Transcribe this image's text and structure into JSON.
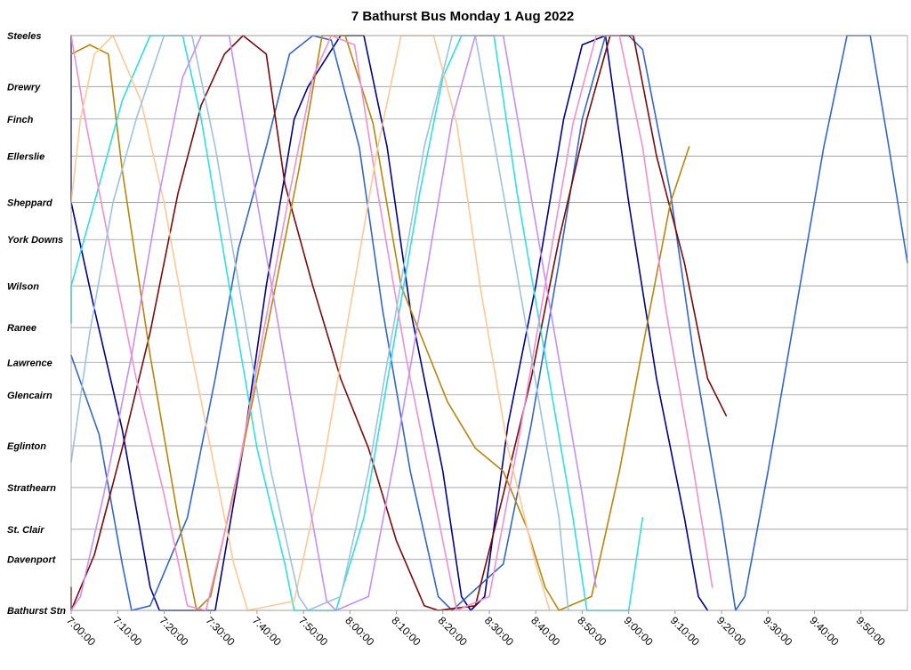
{
  "chart_data": {
    "type": "line",
    "title": "7 Bathurst Bus Monday 1 Aug 2022",
    "xlabel": "",
    "ylabel": "",
    "x_axis": {
      "unit": "time of day",
      "range": [
        "7:00:00",
        "10:00:00"
      ],
      "tick_labels": [
        "7:00:00",
        "7:10:00",
        "7:20:00",
        "7:30:00",
        "7:40:00",
        "7:50:00",
        "8:00:00",
        "8:10:00",
        "8:20:00",
        "8:30:00",
        "8:40:00",
        "8:50:00",
        "9:00:00",
        "9:10:00",
        "9:20:00",
        "9:30:00",
        "9:40:00",
        "9:50:00"
      ]
    },
    "y_axis": {
      "categories_top_to_bottom": [
        "Steeles",
        "Drewry",
        "Finch",
        "Ellerslie",
        "Sheppard",
        "York Downs",
        "Wilson",
        "Ranee",
        "Lawrence",
        "Glencairn",
        "Eglinton",
        "Strathearn",
        "St. Clair",
        "Davenport",
        "Bathurst Stn"
      ],
      "stops": [
        {
          "name": "Steeles",
          "km": 12.4
        },
        {
          "name": "Drewry",
          "km": 11.3
        },
        {
          "name": "Finch",
          "km": 10.6
        },
        {
          "name": "Ellerslie",
          "km": 9.8
        },
        {
          "name": "Sheppard",
          "km": 8.8
        },
        {
          "name": "York Downs",
          "km": 8.0
        },
        {
          "name": "Wilson",
          "km": 7.0
        },
        {
          "name": "Ranee",
          "km": 6.1
        },
        {
          "name": "Lawrence",
          "km": 5.35
        },
        {
          "name": "Glencairn",
          "km": 4.65
        },
        {
          "name": "Eglinton",
          "km": 3.55
        },
        {
          "name": "Strathearn",
          "km": 2.65
        },
        {
          "name": "St. Clair",
          "km": 1.75
        },
        {
          "name": "Davenport",
          "km": 1.1
        },
        {
          "name": "Bathurst Stn",
          "km": 0.0
        }
      ]
    },
    "grid": true,
    "legend": "none",
    "series": [
      {
        "color": "#00008B",
        "points": [
          [
            "6:59:00",
            12.4
          ],
          [
            "7:00:00",
            8.8
          ],
          [
            "7:05:00",
            6.5
          ],
          [
            "7:11:00",
            3.9
          ],
          [
            "7:17:00",
            0.5
          ],
          [
            "7:19:00",
            0.0
          ],
          [
            "7:31:00",
            0.0
          ],
          [
            "7:37:00",
            3.5
          ],
          [
            "7:42:00",
            7.0
          ],
          [
            "7:48:00",
            10.6
          ],
          [
            "7:51:00",
            11.3
          ],
          [
            "7:58:00",
            12.4
          ],
          [
            "8:03:00",
            12.4
          ],
          [
            "8:08:00",
            10.0
          ],
          [
            "8:13:00",
            6.5
          ],
          [
            "8:20:00",
            3.0
          ],
          [
            "8:24:00",
            0.3
          ],
          [
            "8:26:00",
            0.0
          ],
          [
            "8:29:00",
            0.3
          ],
          [
            "8:34:00",
            4.0
          ],
          [
            "8:40:00",
            7.0
          ],
          [
            "8:46:00",
            10.6
          ],
          [
            "8:50:00",
            12.2
          ],
          [
            "8:55:00",
            12.4
          ],
          [
            "9:00:00",
            8.8
          ],
          [
            "9:06:00",
            5.0
          ],
          [
            "9:12:00",
            2.0
          ],
          [
            "9:15:00",
            0.3
          ],
          [
            "9:17:00",
            0.0
          ]
        ]
      },
      {
        "color": "#3366CC",
        "points": [
          [
            "6:59:00",
            5.5
          ],
          [
            "7:06:00",
            3.8
          ],
          [
            "7:11:00",
            1.0
          ],
          [
            "7:13:00",
            0.0
          ],
          [
            "7:17:00",
            0.1
          ],
          [
            "7:25:00",
            2.0
          ],
          [
            "7:31:00",
            5.0
          ],
          [
            "7:36:00",
            7.8
          ],
          [
            "7:42:00",
            10.0
          ],
          [
            "7:47:00",
            12.0
          ],
          [
            "7:52:00",
            12.4
          ],
          [
            "7:56:00",
            12.3
          ],
          [
            "8:02:00",
            10.0
          ],
          [
            "8:07:00",
            6.5
          ],
          [
            "8:13:00",
            3.0
          ],
          [
            "8:19:00",
            0.3
          ],
          [
            "8:22:00",
            0.0
          ],
          [
            "8:33:00",
            1.0
          ],
          [
            "8:39:00",
            4.0
          ],
          [
            "8:45:00",
            7.5
          ],
          [
            "8:50:00",
            10.6
          ],
          [
            "8:55:00",
            12.4
          ],
          [
            "9:00:00",
            12.4
          ],
          [
            "9:03:00",
            12.1
          ],
          [
            "9:09:00",
            9.0
          ],
          [
            "9:14:00",
            5.5
          ],
          [
            "9:20:00",
            2.0
          ],
          [
            "9:23:00",
            0.0
          ],
          [
            "9:25:00",
            0.3
          ],
          [
            "9:30:00",
            3.0
          ],
          [
            "9:36:00",
            6.5
          ],
          [
            "9:42:00",
            10.0
          ],
          [
            "9:47:00",
            12.4
          ],
          [
            "9:52:00",
            12.4
          ],
          [
            "9:56:00",
            10.0
          ],
          [
            "10:00:00",
            7.5
          ]
        ]
      },
      {
        "color": "#7A0A0A",
        "points": [
          [
            "6:59:00",
            0.5
          ],
          [
            "7:00:00",
            0.0
          ],
          [
            "7:05:00",
            1.2
          ],
          [
            "7:11:00",
            3.5
          ],
          [
            "7:17:00",
            6.0
          ],
          [
            "7:23:00",
            9.0
          ],
          [
            "7:28:00",
            10.9
          ],
          [
            "7:33:00",
            12.0
          ],
          [
            "7:37:00",
            12.4
          ],
          [
            "7:42:00",
            12.0
          ],
          [
            "7:46:00",
            9.2
          ],
          [
            "7:52:00",
            7.0
          ],
          [
            "7:58:00",
            5.0
          ],
          [
            "8:04:00",
            3.5
          ],
          [
            "8:10:00",
            1.5
          ],
          [
            "8:16:00",
            0.1
          ],
          [
            "8:19:00",
            0.0
          ],
          [
            "8:27:00",
            0.1
          ],
          [
            "8:33:00",
            2.5
          ],
          [
            "8:39:00",
            5.0
          ],
          [
            "8:45:00",
            8.0
          ],
          [
            "8:51:00",
            10.6
          ],
          [
            "8:56:00",
            12.4
          ],
          [
            "9:01:00",
            12.4
          ],
          [
            "9:06:00",
            9.8
          ],
          [
            "9:12:00",
            7.5
          ],
          [
            "9:17:00",
            5.0
          ],
          [
            "9:21:00",
            4.2
          ]
        ]
      },
      {
        "color": "#B8860B",
        "points": [
          [
            "6:59:00",
            12.0
          ],
          [
            "7:04:00",
            12.2
          ],
          [
            "7:08:00",
            12.0
          ],
          [
            "7:11:00",
            9.5
          ],
          [
            "7:17:00",
            5.5
          ],
          [
            "7:23:00",
            2.0
          ],
          [
            "7:27:00",
            0.0
          ],
          [
            "7:30:00",
            0.3
          ],
          [
            "7:37:00",
            3.5
          ],
          [
            "7:43:00",
            6.5
          ],
          [
            "7:49:00",
            9.5
          ],
          [
            "7:54:00",
            12.4
          ],
          [
            "7:59:00",
            12.4
          ],
          [
            "8:05:00",
            10.5
          ],
          [
            "8:11:00",
            7.0
          ],
          [
            "8:17:00",
            5.5
          ],
          [
            "8:21:00",
            4.5
          ],
          [
            "8:27:00",
            3.5
          ],
          [
            "8:33:00",
            3.0
          ],
          [
            "8:38:00",
            1.8
          ],
          [
            "8:42:00",
            0.5
          ],
          [
            "8:45:00",
            0.0
          ],
          [
            "8:52:00",
            0.3
          ],
          [
            "8:58:00",
            3.0
          ],
          [
            "9:04:00",
            6.2
          ],
          [
            "9:09:00",
            8.8
          ],
          [
            "9:13:00",
            10.0
          ]
        ]
      },
      {
        "color": "#2EE0E0",
        "points": [
          [
            "6:59:00",
            6.2
          ],
          [
            "7:00:00",
            7.0
          ],
          [
            "7:05:00",
            8.8
          ],
          [
            "7:11:00",
            11.0
          ],
          [
            "7:17:00",
            12.4
          ],
          [
            "7:24:00",
            12.4
          ],
          [
            "7:28:00",
            10.6
          ],
          [
            "7:34:00",
            7.0
          ],
          [
            "7:40:00",
            3.5
          ],
          [
            "7:46:00",
            1.0
          ],
          [
            "7:48:00",
            0.0
          ],
          [
            "7:57:00",
            0.0
          ],
          [
            "8:03:00",
            2.0
          ],
          [
            "8:09:00",
            5.5
          ],
          [
            "8:15:00",
            9.0
          ],
          [
            "8:20:00",
            11.5
          ],
          [
            "8:24:00",
            12.4
          ],
          [
            "8:31:00",
            12.4
          ],
          [
            "8:36:00",
            9.0
          ],
          [
            "8:42:00",
            5.5
          ],
          [
            "8:48:00",
            2.0
          ],
          [
            "8:51:00",
            0.0
          ],
          [
            "9:00:00",
            0.0
          ],
          [
            "9:03:00",
            2.0
          ]
        ]
      },
      {
        "color": "#F090D0",
        "points": [
          [
            "6:59:00",
            12.4
          ],
          [
            "7:03:00",
            10.6
          ],
          [
            "7:09:00",
            7.5
          ],
          [
            "7:14:00",
            5.0
          ],
          [
            "7:20:00",
            2.5
          ],
          [
            "7:25:00",
            0.1
          ],
          [
            "7:29:00",
            0.0
          ],
          [
            "7:35:00",
            2.5
          ],
          [
            "7:41:00",
            5.8
          ],
          [
            "7:47:00",
            9.0
          ],
          [
            "7:52:00",
            11.5
          ],
          [
            "7:56:00",
            12.4
          ],
          [
            "8:01:00",
            12.2
          ],
          [
            "8:06:00",
            9.0
          ],
          [
            "8:12:00",
            5.5
          ],
          [
            "8:18:00",
            2.5
          ],
          [
            "8:23:00",
            0.0
          ],
          [
            "8:30:00",
            0.3
          ],
          [
            "8:36:00",
            3.5
          ],
          [
            "8:42:00",
            7.0
          ],
          [
            "8:48:00",
            10.5
          ],
          [
            "8:53:00",
            12.4
          ],
          [
            "8:58:00",
            12.4
          ],
          [
            "9:03:00",
            10.0
          ],
          [
            "9:08:00",
            6.5
          ],
          [
            "9:14:00",
            3.0
          ],
          [
            "9:18:00",
            0.5
          ]
        ]
      },
      {
        "color": "#FFC896",
        "points": [
          [
            "6:59:00",
            8.8
          ],
          [
            "7:02:00",
            10.6
          ],
          [
            "7:05:00",
            12.0
          ],
          [
            "7:09:00",
            12.4
          ],
          [
            "7:15:00",
            11.0
          ],
          [
            "7:20:00",
            8.8
          ],
          [
            "7:25:00",
            6.0
          ],
          [
            "7:30:00",
            3.5
          ],
          [
            "7:35:00",
            1.0
          ],
          [
            "7:38:00",
            0.0
          ],
          [
            "7:48:00",
            0.2
          ],
          [
            "7:54:00",
            3.0
          ],
          [
            "8:00:00",
            6.5
          ],
          [
            "8:06:00",
            10.0
          ],
          [
            "8:11:00",
            12.4
          ],
          [
            "8:18:00",
            12.4
          ],
          [
            "8:23:00",
            10.5
          ],
          [
            "8:28:00",
            7.0
          ],
          [
            "8:34:00",
            3.5
          ],
          [
            "8:40:00",
            1.0
          ],
          [
            "8:43:00",
            0.0
          ]
        ]
      },
      {
        "color": "#9CC3E0",
        "points": [
          [
            "6:59:00",
            3.2
          ],
          [
            "7:04:00",
            6.0
          ],
          [
            "7:09:00",
            8.8
          ],
          [
            "7:14:00",
            10.6
          ],
          [
            "7:20:00",
            12.4
          ],
          [
            "7:26:00",
            12.4
          ],
          [
            "7:31:00",
            10.0
          ],
          [
            "7:37:00",
            6.5
          ],
          [
            "7:43:00",
            3.0
          ],
          [
            "7:49:00",
            0.3
          ],
          [
            "7:51:00",
            0.0
          ],
          [
            "7:58:00",
            0.3
          ],
          [
            "8:04:00",
            3.0
          ],
          [
            "8:10:00",
            6.5
          ],
          [
            "8:16:00",
            10.0
          ],
          [
            "8:22:00",
            12.4
          ],
          [
            "8:27:00",
            12.4
          ],
          [
            "8:33:00",
            9.0
          ],
          [
            "8:39:00",
            5.5
          ],
          [
            "8:45:00",
            2.0
          ],
          [
            "8:47:00",
            0.0
          ]
        ]
      },
      {
        "color": "#C890F0",
        "points": [
          [
            "6:59:00",
            0.0
          ],
          [
            "7:02:00",
            0.3
          ],
          [
            "7:07:00",
            2.5
          ],
          [
            "7:13:00",
            5.5
          ],
          [
            "7:19:00",
            9.0
          ],
          [
            "7:24:00",
            11.5
          ],
          [
            "7:28:00",
            12.4
          ],
          [
            "7:34:00",
            12.4
          ],
          [
            "7:38:00",
            10.0
          ],
          [
            "7:44:00",
            6.5
          ],
          [
            "7:50:00",
            3.0
          ],
          [
            "7:55:00",
            0.2
          ],
          [
            "7:57:00",
            0.0
          ],
          [
            "8:04:00",
            0.3
          ],
          [
            "8:10:00",
            3.5
          ],
          [
            "8:16:00",
            7.0
          ],
          [
            "8:22:00",
            10.6
          ],
          [
            "8:27:00",
            12.4
          ],
          [
            "8:33:00",
            12.4
          ],
          [
            "8:38:00",
            9.5
          ],
          [
            "8:44:00",
            6.0
          ],
          [
            "8:50:00",
            2.5
          ],
          [
            "8:53:00",
            0.5
          ]
        ]
      }
    ]
  }
}
